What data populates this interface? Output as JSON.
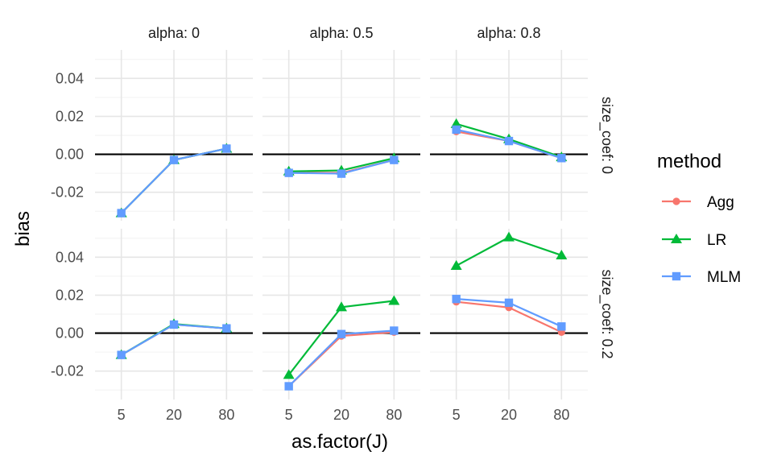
{
  "chart_data": {
    "type": "line",
    "xlabel": "as.factor(J)",
    "ylabel": "bias",
    "categories": [
      "5",
      "20",
      "80"
    ],
    "ylim": [
      -0.035,
      0.055
    ],
    "yticks": [
      -0.02,
      0.0,
      0.02,
      0.04
    ],
    "ytick_labels": [
      "-0.02",
      "0.00",
      "0.02",
      "0.04"
    ],
    "hline": 0,
    "grid": true,
    "legend": {
      "title": "method",
      "placement": "right",
      "entries": [
        {
          "name": "Agg",
          "color": "#F8766D",
          "shape": "circle"
        },
        {
          "name": "LR",
          "color": "#00BA38",
          "shape": "triangle"
        },
        {
          "name": "MLM",
          "color": "#619CFF",
          "shape": "square"
        }
      ]
    },
    "col_facets": [
      "alpha: 0",
      "alpha: 0.5",
      "alpha: 0.8"
    ],
    "row_facets": [
      "size_coef: 0",
      "size_coef: 0.2"
    ],
    "panels": [
      {
        "row": 0,
        "col": 0,
        "series": [
          {
            "name": "Agg",
            "values": [
              -0.031,
              -0.003,
              0.003
            ]
          },
          {
            "name": "LR",
            "values": [
              -0.031,
              -0.003,
              0.003
            ]
          },
          {
            "name": "MLM",
            "values": [
              -0.031,
              -0.003,
              0.003
            ]
          }
        ]
      },
      {
        "row": 0,
        "col": 1,
        "series": [
          {
            "name": "Agg",
            "values": [
              -0.0095,
              -0.0098,
              -0.003
            ]
          },
          {
            "name": "LR",
            "values": [
              -0.009,
              -0.0085,
              -0.002
            ]
          },
          {
            "name": "MLM",
            "values": [
              -0.0098,
              -0.0102,
              -0.003
            ]
          }
        ]
      },
      {
        "row": 0,
        "col": 2,
        "series": [
          {
            "name": "Agg",
            "values": [
              0.012,
              0.007,
              -0.002
            ]
          },
          {
            "name": "LR",
            "values": [
              0.016,
              0.008,
              -0.0015
            ]
          },
          {
            "name": "MLM",
            "values": [
              0.013,
              0.007,
              -0.002
            ]
          }
        ]
      },
      {
        "row": 1,
        "col": 0,
        "series": [
          {
            "name": "Agg",
            "values": [
              -0.0115,
              0.0045,
              0.0025
            ]
          },
          {
            "name": "LR",
            "values": [
              -0.0115,
              0.0048,
              0.0025
            ]
          },
          {
            "name": "MLM",
            "values": [
              -0.0115,
              0.0045,
              0.0025
            ]
          }
        ]
      },
      {
        "row": 1,
        "col": 1,
        "series": [
          {
            "name": "Agg",
            "values": [
              -0.028,
              -0.0015,
              0.0005
            ]
          },
          {
            "name": "LR",
            "values": [
              -0.022,
              0.0137,
              0.017
            ]
          },
          {
            "name": "MLM",
            "values": [
              -0.028,
              -0.0005,
              0.0013
            ]
          }
        ]
      },
      {
        "row": 1,
        "col": 2,
        "series": [
          {
            "name": "Agg",
            "values": [
              0.0165,
              0.0135,
              0.0005
            ]
          },
          {
            "name": "LR",
            "values": [
              0.0355,
              0.0505,
              0.041
            ]
          },
          {
            "name": "MLM",
            "values": [
              0.018,
              0.016,
              0.0035
            ]
          }
        ]
      }
    ]
  }
}
